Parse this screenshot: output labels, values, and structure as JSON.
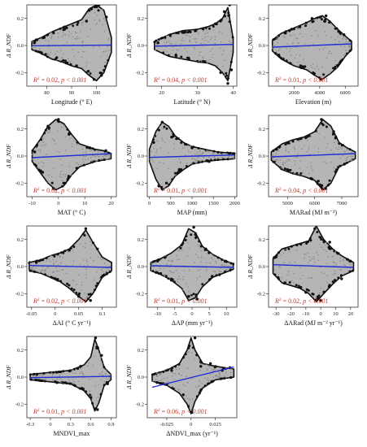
{
  "figure": {
    "ylabel": "Δ R_NDF",
    "colors": {
      "point": "#111111",
      "band": "#b5b5b5",
      "fit": "#1f2bd6",
      "stat": "#c0392b",
      "axis": "#333333"
    }
  },
  "chart_data": [
    {
      "id": "p1",
      "type": "scatter",
      "xlabel": "Longitude (° E)",
      "ylabel": "Δ R_NDF",
      "xlim": [
        72,
        108
      ],
      "ylim": [
        -0.3,
        0.3
      ],
      "xticks": [
        80,
        90,
        100
      ],
      "yticks": [
        -0.2,
        0.0,
        0.2
      ],
      "r2": "0.02",
      "p": "p < 0.001",
      "fit": {
        "x": [
          74,
          106
        ],
        "y": [
          -0.002,
          0.003
        ]
      },
      "envelope": {
        "x": [
          74,
          78,
          82,
          86,
          90,
          94,
          97,
          100,
          103,
          106
        ],
        "hi": [
          0.03,
          0.06,
          0.1,
          0.13,
          0.16,
          0.19,
          0.27,
          0.3,
          0.26,
          0.06
        ],
        "lo": [
          -0.03,
          -0.06,
          -0.1,
          -0.12,
          -0.15,
          -0.17,
          -0.22,
          -0.26,
          -0.2,
          -0.05
        ]
      },
      "points": [
        [
          75,
          0.02
        ],
        [
          79,
          0.06
        ],
        [
          84,
          -0.09
        ],
        [
          88,
          0.13
        ],
        [
          92,
          -0.15
        ],
        [
          96,
          0.18
        ],
        [
          98,
          0.27
        ],
        [
          99,
          -0.25
        ],
        [
          101,
          0.3
        ],
        [
          102,
          -0.22
        ],
        [
          104,
          0.21
        ]
      ]
    },
    {
      "id": "p2",
      "type": "scatter",
      "xlabel": "Latitude (° N)",
      "ylabel": "Δ R_NDF",
      "xlim": [
        16,
        41
      ],
      "ylim": [
        -0.3,
        0.3
      ],
      "xticks": [
        20,
        30,
        40
      ],
      "yticks": [
        -0.2,
        0.0,
        0.2
      ],
      "r2": "0.04",
      "p": "p < 0.001",
      "fit": {
        "x": [
          18,
          40
        ],
        "y": [
          -0.005,
          0.008
        ]
      },
      "envelope": {
        "x": [
          18,
          22,
          26,
          30,
          33,
          35,
          37,
          38.5,
          40
        ],
        "hi": [
          0.03,
          0.08,
          0.11,
          0.12,
          0.14,
          0.16,
          0.2,
          0.28,
          0.05
        ],
        "lo": [
          -0.03,
          -0.08,
          -0.1,
          -0.12,
          -0.13,
          -0.15,
          -0.2,
          -0.26,
          -0.05
        ]
      },
      "points": [
        [
          19,
          0.02
        ],
        [
          24,
          -0.07
        ],
        [
          28,
          0.1
        ],
        [
          32,
          -0.12
        ],
        [
          35,
          0.16
        ],
        [
          36.5,
          -0.2
        ],
        [
          37.5,
          0.25
        ],
        [
          38.5,
          -0.28
        ],
        [
          39,
          0.3
        ],
        [
          39.5,
          -0.18
        ]
      ]
    },
    {
      "id": "p3",
      "type": "scatter",
      "xlabel": "Elevation (m)",
      "ylabel": "Δ R_NDF",
      "xlim": [
        0,
        7000
      ],
      "ylim": [
        -0.3,
        0.3
      ],
      "xticks": [
        2000,
        4000,
        6000
      ],
      "yticks": [
        -0.2,
        0.0,
        0.2
      ],
      "r2": "0.01",
      "p": "p < 0.001",
      "fit": {
        "x": [
          300,
          6500
        ],
        "y": [
          -0.012,
          0.012
        ]
      },
      "envelope": {
        "x": [
          300,
          1000,
          2000,
          3000,
          3600,
          4200,
          4800,
          5400,
          6000,
          6500
        ],
        "hi": [
          0.04,
          0.09,
          0.13,
          0.17,
          0.2,
          0.22,
          0.18,
          0.12,
          0.07,
          0.03
        ],
        "lo": [
          -0.04,
          -0.1,
          -0.15,
          -0.18,
          -0.22,
          -0.25,
          -0.21,
          -0.16,
          -0.08,
          -0.03
        ]
      },
      "points": [
        [
          800,
          -0.07
        ],
        [
          1800,
          0.12
        ],
        [
          2500,
          -0.15
        ],
        [
          3400,
          0.2
        ],
        [
          4100,
          -0.25
        ],
        [
          4500,
          0.22
        ],
        [
          5200,
          -0.17
        ],
        [
          5900,
          0.08
        ]
      ]
    },
    {
      "id": "p4",
      "type": "scatter",
      "xlabel": "MAT (° C)",
      "ylabel": "Δ R_NDF",
      "xlim": [
        -12,
        22
      ],
      "ylim": [
        -0.3,
        0.3
      ],
      "xticks": [
        -10,
        0,
        10,
        20
      ],
      "yticks": [
        -0.2,
        0.0,
        0.2
      ],
      "r2": "0.02",
      "p": "p < 0.001",
      "fit": {
        "x": [
          -10,
          20
        ],
        "y": [
          -0.012,
          0.018
        ]
      },
      "envelope": {
        "x": [
          -10,
          -7,
          -4,
          -1,
          2,
          5,
          8,
          11,
          14,
          17,
          20
        ],
        "hi": [
          0.04,
          0.12,
          0.22,
          0.27,
          0.24,
          0.16,
          0.09,
          0.07,
          0.05,
          0.04,
          0.02
        ],
        "lo": [
          -0.04,
          -0.12,
          -0.2,
          -0.25,
          -0.22,
          -0.14,
          -0.08,
          -0.06,
          -0.04,
          -0.03,
          -0.02
        ]
      },
      "points": [
        [
          -9,
          0.03
        ],
        [
          -6,
          -0.12
        ],
        [
          -4,
          0.22
        ],
        [
          -2,
          -0.24
        ],
        [
          0,
          0.27
        ],
        [
          2,
          -0.2
        ],
        [
          4,
          0.16
        ],
        [
          7,
          -0.09
        ],
        [
          12,
          0.06
        ],
        [
          18,
          0.04
        ]
      ]
    },
    {
      "id": "p5",
      "type": "scatter",
      "xlabel": "MAP (mm)",
      "ylabel": "Δ R_NDF",
      "xlim": [
        -50,
        2050
      ],
      "ylim": [
        -0.3,
        0.3
      ],
      "xticks": [
        0,
        500,
        1000,
        1500,
        2000
      ],
      "yticks": [
        -0.2,
        0.0,
        0.2
      ],
      "r2": "0.01",
      "p": "p < 0.001",
      "fit": {
        "x": [
          0,
          2000
        ],
        "y": [
          -0.01,
          0.008
        ]
      },
      "envelope": {
        "x": [
          0,
          150,
          300,
          450,
          600,
          800,
          1000,
          1300,
          1600,
          2000
        ],
        "hi": [
          0.05,
          0.18,
          0.25,
          0.22,
          0.15,
          0.1,
          0.07,
          0.05,
          0.03,
          0.02
        ],
        "lo": [
          -0.04,
          -0.17,
          -0.25,
          -0.22,
          -0.15,
          -0.1,
          -0.06,
          -0.04,
          -0.03,
          -0.02
        ]
      },
      "points": [
        [
          100,
          0.1
        ],
        [
          220,
          -0.22
        ],
        [
          300,
          0.25
        ],
        [
          400,
          -0.2
        ],
        [
          520,
          0.14
        ],
        [
          700,
          -0.1
        ],
        [
          1000,
          0.06
        ],
        [
          1400,
          -0.04
        ]
      ]
    },
    {
      "id": "p6",
      "type": "scatter",
      "xlabel": "MARad (MJ m⁻²)",
      "ylabel": "Δ R_NDF",
      "xlim": [
        4300,
        7600
      ],
      "ylim": [
        -0.3,
        0.3
      ],
      "xticks": [
        5000,
        6000,
        7000
      ],
      "yticks": [
        -0.2,
        0.0,
        0.2
      ],
      "r2": "0.04",
      "p": "p < 0.001",
      "fit": {
        "x": [
          4400,
          7500
        ],
        "y": [
          -0.006,
          0.018
        ]
      },
      "envelope": {
        "x": [
          4400,
          4800,
          5200,
          5600,
          6000,
          6300,
          6600,
          6900,
          7200,
          7500
        ],
        "hi": [
          0.03,
          0.09,
          0.12,
          0.14,
          0.18,
          0.27,
          0.22,
          0.1,
          0.06,
          0.03
        ],
        "lo": [
          -0.03,
          -0.1,
          -0.13,
          -0.15,
          -0.18,
          -0.25,
          -0.2,
          -0.08,
          -0.05,
          -0.02
        ]
      },
      "points": [
        [
          4600,
          0.05
        ],
        [
          5000,
          -0.1
        ],
        [
          5500,
          0.13
        ],
        [
          5900,
          -0.17
        ],
        [
          6250,
          0.27
        ],
        [
          6400,
          -0.24
        ],
        [
          6700,
          0.18
        ],
        [
          7100,
          -0.06
        ]
      ]
    },
    {
      "id": "p7",
      "type": "scatter",
      "xlabel": "ΔAI (° C yr⁻¹)",
      "ylabel": "Δ R_NDF",
      "xlim": [
        -0.06,
        0.13
      ],
      "ylim": [
        -0.3,
        0.3
      ],
      "xticks": [
        -0.05,
        0.0,
        0.05,
        0.1
      ],
      "yticks": [
        -0.2,
        0.0,
        0.2
      ],
      "r2": "0.02",
      "p": "p < 0.001",
      "fit": {
        "x": [
          -0.055,
          0.12
        ],
        "y": [
          0.008,
          -0.006
        ]
      },
      "envelope": {
        "x": [
          -0.055,
          -0.03,
          -0.01,
          0.01,
          0.03,
          0.05,
          0.065,
          0.08,
          0.1,
          0.12
        ],
        "hi": [
          0.03,
          0.05,
          0.08,
          0.1,
          0.13,
          0.2,
          0.27,
          0.18,
          0.07,
          0.03
        ],
        "lo": [
          -0.03,
          -0.05,
          -0.08,
          -0.11,
          -0.16,
          -0.22,
          -0.26,
          -0.2,
          -0.08,
          -0.03
        ]
      },
      "points": [
        [
          -0.04,
          0.03
        ],
        [
          0.0,
          -0.09
        ],
        [
          0.03,
          0.12
        ],
        [
          0.05,
          -0.22
        ],
        [
          0.065,
          0.28
        ],
        [
          0.075,
          -0.25
        ],
        [
          0.09,
          0.13
        ],
        [
          0.11,
          -0.05
        ]
      ]
    },
    {
      "id": "p8",
      "type": "scatter",
      "xlabel": "ΔAP (mm yr⁻¹)",
      "ylabel": "Δ R_NDF",
      "xlim": [
        -13,
        13
      ],
      "ylim": [
        -0.3,
        0.3
      ],
      "xticks": [
        -10,
        -5,
        0,
        5,
        10
      ],
      "yticks": [
        -0.2,
        0.0,
        0.2
      ],
      "r2": "0.01",
      "p": "p < 0.001",
      "fit": {
        "x": [
          -12,
          12
        ],
        "y": [
          0.006,
          -0.006
        ]
      },
      "envelope": {
        "x": [
          -12,
          -9,
          -6,
          -3,
          -1,
          1,
          3,
          6,
          9,
          12
        ],
        "hi": [
          0.03,
          0.06,
          0.1,
          0.16,
          0.28,
          0.25,
          0.15,
          0.09,
          0.05,
          0.02
        ],
        "lo": [
          -0.03,
          -0.06,
          -0.1,
          -0.16,
          -0.25,
          -0.23,
          -0.15,
          -0.08,
          -0.05,
          -0.02
        ]
      },
      "points": [
        [
          -10,
          0.04
        ],
        [
          -6,
          -0.1
        ],
        [
          -3,
          0.16
        ],
        [
          -1,
          -0.22
        ],
        [
          0.5,
          0.29
        ],
        [
          1.5,
          -0.24
        ],
        [
          4,
          0.13
        ],
        [
          8,
          -0.06
        ]
      ]
    },
    {
      "id": "p9",
      "type": "scatter",
      "xlabel": "ΔARad (MJ m⁻² yr⁻¹)",
      "ylabel": "Δ R_NDF",
      "xlim": [
        -35,
        25
      ],
      "ylim": [
        -0.3,
        0.3
      ],
      "xticks": [
        -30,
        -20,
        -10,
        0,
        10,
        20
      ],
      "yticks": [
        -0.2,
        0.0,
        0.2
      ],
      "r2": "0.02",
      "p": "p < 0.001",
      "fit": {
        "x": [
          -32,
          22
        ],
        "y": [
          0.014,
          -0.006
        ]
      },
      "envelope": {
        "x": [
          -32,
          -26,
          -20,
          -14,
          -8,
          -3,
          2,
          8,
          14,
          22
        ],
        "hi": [
          0.06,
          0.13,
          0.15,
          0.17,
          0.19,
          0.3,
          0.2,
          0.13,
          0.08,
          0.03
        ],
        "lo": [
          -0.05,
          -0.12,
          -0.14,
          -0.16,
          -0.2,
          -0.26,
          -0.2,
          -0.13,
          -0.07,
          -0.03
        ]
      },
      "points": [
        [
          -30,
          0.07
        ],
        [
          -24,
          -0.12
        ],
        [
          -16,
          0.16
        ],
        [
          -10,
          -0.19
        ],
        [
          -4,
          0.28
        ],
        [
          0,
          -0.25
        ],
        [
          6,
          0.18
        ],
        [
          14,
          -0.09
        ],
        [
          20,
          0.04
        ]
      ]
    },
    {
      "id": "p10",
      "type": "scatter",
      "xlabel": "MNDVI_max",
      "ylabel": "Δ R_NDF",
      "xlim": [
        -0.35,
        0.98
      ],
      "ylim": [
        -0.3,
        0.3
      ],
      "xticks": [
        -0.3,
        0.0,
        0.3,
        0.6,
        0.9
      ],
      "yticks": [
        -0.2,
        0.0,
        0.2
      ],
      "r2": "0.01",
      "p": "p < 0.001",
      "fit": {
        "x": [
          -0.3,
          0.9
        ],
        "y": [
          -0.004,
          0.006
        ]
      },
      "envelope": {
        "x": [
          -0.3,
          -0.1,
          0.1,
          0.3,
          0.5,
          0.6,
          0.66,
          0.72,
          0.8,
          0.9
        ],
        "hi": [
          0.02,
          0.03,
          0.04,
          0.05,
          0.09,
          0.15,
          0.28,
          0.2,
          0.07,
          0.02
        ],
        "lo": [
          -0.02,
          -0.03,
          -0.04,
          -0.05,
          -0.1,
          -0.16,
          -0.25,
          -0.19,
          -0.06,
          -0.02
        ]
      },
      "points": [
        [
          -0.2,
          0.02
        ],
        [
          0.1,
          -0.04
        ],
        [
          0.45,
          0.08
        ],
        [
          0.6,
          -0.15
        ],
        [
          0.67,
          0.29
        ],
        [
          0.7,
          -0.24
        ],
        [
          0.76,
          0.16
        ],
        [
          0.85,
          -0.05
        ]
      ]
    },
    {
      "id": "p11",
      "type": "scatter",
      "xlabel": "ΔNDVI_max (yr⁻¹)",
      "ylabel": "Δ R_NDF",
      "xlim": [
        -0.045,
        0.047
      ],
      "ylim": [
        -0.3,
        0.3
      ],
      "xticks": [
        -0.025,
        0.0,
        0.025
      ],
      "yticks": [
        -0.2,
        0.0,
        0.2
      ],
      "r2": "0.06",
      "p": "p < 0.001",
      "fit": {
        "x": [
          -0.04,
          0.044
        ],
        "y": [
          -0.075,
          0.075
        ]
      },
      "envelope": {
        "x": [
          -0.04,
          -0.025,
          -0.012,
          -0.004,
          0.0,
          0.004,
          0.012,
          0.025,
          0.044
        ],
        "hi": [
          0.02,
          0.05,
          0.1,
          0.2,
          0.29,
          0.2,
          0.1,
          0.08,
          0.06
        ],
        "lo": [
          -0.03,
          -0.06,
          -0.12,
          -0.2,
          -0.27,
          -0.18,
          -0.08,
          -0.02,
          0.0
        ]
      },
      "points": [
        [
          -0.035,
          -0.04
        ],
        [
          -0.02,
          0.05
        ],
        [
          -0.008,
          -0.13
        ],
        [
          -0.002,
          0.23
        ],
        [
          0.001,
          -0.26
        ],
        [
          0.004,
          0.29
        ],
        [
          0.01,
          0.08
        ],
        [
          0.02,
          0.1
        ],
        [
          0.032,
          0.05
        ],
        [
          0.04,
          0.07
        ]
      ]
    }
  ]
}
